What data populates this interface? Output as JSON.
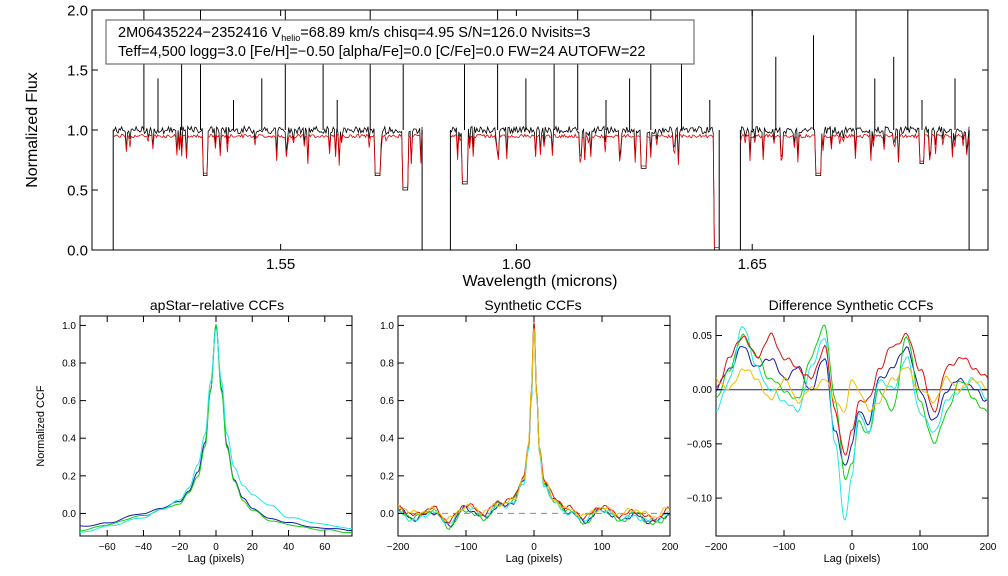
{
  "figure": {
    "header_line1_prefix": "2M06435224−2352416  V",
    "header_line1_sub": "helio",
    "header_line1_suffix": "=68.89 km/s  chisq=4.95  S/N=126.0  Nvisits=3",
    "header_line2": "Teff=4,500 logg=3.0 [Fe/H]=−0.50 [alpha/Fe]=0.0 [C/Fe]=0.0 FW=24 AUTOFW=22"
  },
  "colors": {
    "observed": "#000000",
    "model": "#e00000",
    "blue": "#1a1aa0",
    "green": "#10d010",
    "cyan": "#20e8e8",
    "red": "#e01010",
    "yellow": "#f0c000",
    "gray_dash": "#8a8a8a"
  },
  "chart_data": [
    {
      "id": "spectrum",
      "type": "line",
      "xlabel": "Wavelength (microns)",
      "ylabel": "Normalized Flux",
      "xlim": [
        1.51,
        1.7
      ],
      "ylim": [
        0.0,
        2.0
      ],
      "xticks": [
        1.55,
        1.6,
        1.65
      ],
      "xtick_labels": [
        "1.55",
        "1.60",
        "1.65"
      ],
      "yticks": [
        0.0,
        0.5,
        1.0,
        1.5,
        2.0
      ],
      "ytick_labels": [
        "0.0",
        "0.5",
        "1.0",
        "1.5",
        "2.0"
      ],
      "chips": [
        [
          1.5145,
          1.58
        ],
        [
          1.586,
          1.643
        ],
        [
          1.6475,
          1.696
        ]
      ],
      "continuum_observed": 1.0,
      "continuum_model": 0.95,
      "emission_spikes": [
        1.521,
        1.524,
        1.529,
        1.533,
        1.54,
        1.546,
        1.551,
        1.559,
        1.562,
        1.569,
        1.576,
        1.589,
        1.596,
        1.602,
        1.608,
        1.613,
        1.619,
        1.624,
        1.6285,
        1.635,
        1.641,
        1.65,
        1.655,
        1.663,
        1.672,
        1.676,
        1.68,
        1.683,
        1.686,
        1.693
      ],
      "absorption_lines": [
        [
          1.534,
          0.62
        ],
        [
          1.5705,
          0.62
        ],
        [
          1.5765,
          0.5
        ],
        [
          1.589,
          0.55
        ],
        [
          1.627,
          0.68
        ],
        [
          1.6425,
          0.0
        ],
        [
          1.664,
          0.62
        ],
        [
          1.686,
          0.72
        ]
      ],
      "series": [
        {
          "name": "",
          "role": "observed"
        },
        {
          "name": "",
          "role": "model"
        }
      ]
    },
    {
      "id": "apstar_ccf",
      "type": "line",
      "title": "apStar−relative CCFs",
      "xlabel": "Lag (pixels)",
      "ylabel": "Normalized CCF",
      "xlim": [
        -75,
        75
      ],
      "ylim": [
        -0.12,
        1.05
      ],
      "xticks": [
        -60,
        -40,
        -20,
        0,
        20,
        40,
        60
      ],
      "xtick_labels": [
        "−60",
        "−40",
        "−20",
        "0",
        "20",
        "40",
        "60"
      ],
      "yticks": [
        0.0,
        0.2,
        0.4,
        0.6,
        0.8,
        1.0
      ],
      "ytick_labels": [
        "0.0",
        "0.2",
        "0.4",
        "0.6",
        "0.8",
        "1.0"
      ],
      "series": [
        {
          "color": "blue",
          "x": [
            -75,
            -60,
            -40,
            -30,
            -20,
            -15,
            -10,
            -6,
            -3,
            0,
            3,
            6,
            10,
            15,
            20,
            30,
            40,
            60,
            75
          ],
          "y": [
            -0.07,
            -0.05,
            0.0,
            0.03,
            0.06,
            0.12,
            0.22,
            0.38,
            0.66,
            1.0,
            0.66,
            0.36,
            0.18,
            0.08,
            0.03,
            -0.03,
            -0.05,
            -0.08,
            -0.09
          ]
        },
        {
          "color": "green",
          "x": [
            -75,
            -60,
            -40,
            -30,
            -20,
            -15,
            -10,
            -6,
            -3,
            0,
            3,
            6,
            10,
            15,
            20,
            30,
            40,
            60,
            75
          ],
          "y": [
            -0.09,
            -0.06,
            -0.01,
            0.02,
            0.05,
            0.11,
            0.2,
            0.36,
            0.65,
            1.0,
            0.65,
            0.35,
            0.17,
            0.07,
            0.02,
            -0.04,
            -0.06,
            -0.09,
            -0.1
          ]
        },
        {
          "color": "cyan",
          "x": [
            -75,
            -60,
            -40,
            -30,
            -20,
            -15,
            -10,
            -6,
            -3,
            0,
            3,
            6,
            10,
            15,
            20,
            30,
            40,
            60,
            75
          ],
          "y": [
            -0.1,
            -0.07,
            -0.02,
            0.02,
            0.07,
            0.14,
            0.26,
            0.42,
            0.7,
            0.98,
            0.7,
            0.42,
            0.25,
            0.15,
            0.1,
            0.04,
            -0.02,
            -0.06,
            -0.08
          ]
        }
      ]
    },
    {
      "id": "synthetic_ccf",
      "type": "line",
      "title": "Synthetic CCFs",
      "xlabel": "Lag (pixels)",
      "xlim": [
        -200,
        200
      ],
      "ylim": [
        -0.12,
        1.05
      ],
      "xticks": [
        -200,
        -100,
        0,
        100,
        200
      ],
      "xtick_labels": [
        "−200",
        "−100",
        "0",
        "100",
        "200"
      ],
      "yticks": [
        0.0,
        0.2,
        0.4,
        0.6,
        0.8,
        1.0
      ],
      "ytick_labels": [
        "0.0",
        "0.2",
        "0.4",
        "0.6",
        "0.8",
        "1.0"
      ],
      "reference_line_y": 0.0,
      "series": [
        {
          "color": "blue",
          "x": [
            -200,
            -175,
            -150,
            -125,
            -100,
            -75,
            -50,
            -30,
            -15,
            -8,
            -4,
            0,
            4,
            8,
            15,
            30,
            50,
            75,
            100,
            125,
            150,
            175,
            200
          ],
          "y": [
            0.02,
            -0.03,
            0.01,
            -0.06,
            0.03,
            -0.02,
            0.04,
            0.06,
            0.18,
            0.35,
            0.62,
            1.0,
            0.62,
            0.33,
            0.16,
            0.07,
            0.01,
            -0.04,
            0.02,
            -0.03,
            -0.01,
            -0.05,
            0.0
          ]
        },
        {
          "color": "green",
          "x": [
            -200,
            -175,
            -150,
            -125,
            -100,
            -75,
            -50,
            -30,
            -15,
            -8,
            -4,
            0,
            4,
            8,
            15,
            30,
            50,
            75,
            100,
            125,
            150,
            175,
            200
          ],
          "y": [
            0.0,
            -0.02,
            0.02,
            -0.07,
            0.02,
            -0.03,
            0.05,
            0.07,
            0.19,
            0.36,
            0.63,
            1.0,
            0.63,
            0.34,
            0.17,
            0.06,
            0.02,
            -0.05,
            0.03,
            -0.04,
            0.0,
            -0.06,
            -0.01
          ]
        },
        {
          "color": "cyan",
          "x": [
            -200,
            -175,
            -150,
            -125,
            -100,
            -75,
            -50,
            -30,
            -15,
            -8,
            -4,
            0,
            4,
            8,
            15,
            30,
            50,
            75,
            100,
            125,
            150,
            175,
            200
          ],
          "y": [
            0.01,
            -0.04,
            0.01,
            -0.05,
            0.04,
            -0.01,
            0.04,
            0.05,
            0.17,
            0.34,
            0.6,
            0.99,
            0.6,
            0.32,
            0.15,
            0.06,
            0.0,
            -0.03,
            0.02,
            -0.02,
            -0.02,
            -0.04,
            0.01
          ]
        },
        {
          "color": "red",
          "x": [
            -200,
            -175,
            -150,
            -125,
            -100,
            -75,
            -50,
            -30,
            -15,
            -8,
            -4,
            0,
            4,
            8,
            15,
            30,
            50,
            75,
            100,
            125,
            150,
            175,
            200
          ],
          "y": [
            0.03,
            -0.01,
            0.03,
            -0.04,
            0.05,
            0.0,
            0.06,
            0.08,
            0.2,
            0.37,
            0.64,
            1.0,
            0.64,
            0.35,
            0.18,
            0.08,
            0.03,
            -0.02,
            0.04,
            -0.01,
            0.01,
            -0.03,
            0.02
          ]
        },
        {
          "color": "yellow",
          "x": [
            -200,
            -175,
            -150,
            -125,
            -100,
            -75,
            -50,
            -30,
            -15,
            -8,
            -4,
            0,
            4,
            8,
            15,
            30,
            50,
            75,
            100,
            125,
            150,
            175,
            200
          ],
          "y": [
            0.04,
            0.0,
            0.02,
            -0.03,
            0.04,
            0.01,
            0.05,
            0.07,
            0.19,
            0.36,
            0.63,
            0.99,
            0.63,
            0.34,
            0.17,
            0.07,
            0.02,
            -0.01,
            0.03,
            0.0,
            0.02,
            -0.02,
            0.03
          ]
        }
      ]
    },
    {
      "id": "difference_ccf",
      "type": "line",
      "title": "Difference Synthetic CCFs",
      "xlabel": "Lag (pixels)",
      "xlim": [
        -200,
        200
      ],
      "ylim": [
        -0.135,
        0.068
      ],
      "xticks": [
        -200,
        -100,
        0,
        100,
        200
      ],
      "xtick_labels": [
        "−200",
        "−100",
        "0",
        "100",
        "200"
      ],
      "yticks": [
        0.05,
        0.0,
        -0.05,
        -0.1
      ],
      "ytick_labels": [
        "0.05",
        "0.00",
        "−0.05",
        "−0.10"
      ],
      "reference_line_y": 0.0,
      "series": [
        {
          "color": "blue",
          "x": [
            -200,
            -180,
            -160,
            -140,
            -120,
            -100,
            -80,
            -60,
            -40,
            -25,
            -10,
            0,
            10,
            25,
            40,
            60,
            80,
            100,
            120,
            140,
            160,
            180,
            200
          ],
          "y": [
            0.0,
            0.02,
            0.04,
            0.02,
            0.03,
            0.01,
            0.02,
            0.0,
            0.03,
            -0.04,
            -0.07,
            -0.05,
            -0.02,
            -0.03,
            0.01,
            0.02,
            0.04,
            0.0,
            -0.03,
            0.0,
            0.01,
            0.0,
            -0.01
          ]
        },
        {
          "color": "green",
          "x": [
            -200,
            -180,
            -160,
            -140,
            -120,
            -100,
            -80,
            -60,
            -40,
            -25,
            -10,
            0,
            10,
            25,
            40,
            60,
            80,
            100,
            120,
            140,
            160,
            180,
            200
          ],
          "y": [
            -0.01,
            0.02,
            0.05,
            0.03,
            0.01,
            0.0,
            -0.01,
            0.03,
            0.06,
            -0.01,
            -0.08,
            -0.07,
            -0.03,
            -0.04,
            0.0,
            -0.02,
            0.05,
            -0.01,
            -0.05,
            -0.02,
            0.01,
            -0.01,
            -0.02
          ]
        },
        {
          "color": "cyan",
          "x": [
            -200,
            -180,
            -160,
            -140,
            -120,
            -100,
            -80,
            -60,
            -40,
            -25,
            -10,
            0,
            10,
            25,
            40,
            60,
            80,
            100,
            120,
            140,
            160,
            180,
            200
          ],
          "y": [
            -0.02,
            0.01,
            0.06,
            0.02,
            0.0,
            -0.01,
            -0.02,
            0.02,
            0.05,
            -0.05,
            -0.12,
            -0.08,
            -0.02,
            -0.04,
            0.01,
            0.0,
            0.03,
            -0.02,
            -0.04,
            -0.01,
            0.0,
            0.01,
            -0.01
          ]
        },
        {
          "color": "red",
          "x": [
            -200,
            -180,
            -160,
            -140,
            -120,
            -100,
            -80,
            -60,
            -40,
            -25,
            -10,
            0,
            10,
            25,
            40,
            60,
            80,
            100,
            120,
            140,
            160,
            180,
            200
          ],
          "y": [
            0.0,
            0.03,
            0.05,
            0.03,
            0.05,
            0.03,
            0.02,
            0.01,
            0.04,
            -0.02,
            -0.06,
            -0.04,
            -0.01,
            -0.01,
            0.02,
            0.04,
            0.05,
            0.02,
            -0.02,
            0.02,
            0.03,
            0.02,
            0.01
          ]
        },
        {
          "color": "yellow",
          "x": [
            -200,
            -180,
            -160,
            -140,
            -120,
            -100,
            -80,
            -60,
            -40,
            -25,
            -10,
            0,
            10,
            25,
            40,
            60,
            80,
            100,
            120,
            140,
            160,
            180,
            200
          ],
          "y": [
            0.01,
            0.0,
            0.02,
            0.01,
            -0.01,
            0.01,
            -0.01,
            0.0,
            0.01,
            -0.01,
            -0.02,
            0.01,
            0.0,
            -0.02,
            -0.01,
            0.01,
            0.02,
            0.0,
            -0.01,
            0.01,
            0.0,
            0.01,
            0.0
          ]
        }
      ]
    }
  ]
}
